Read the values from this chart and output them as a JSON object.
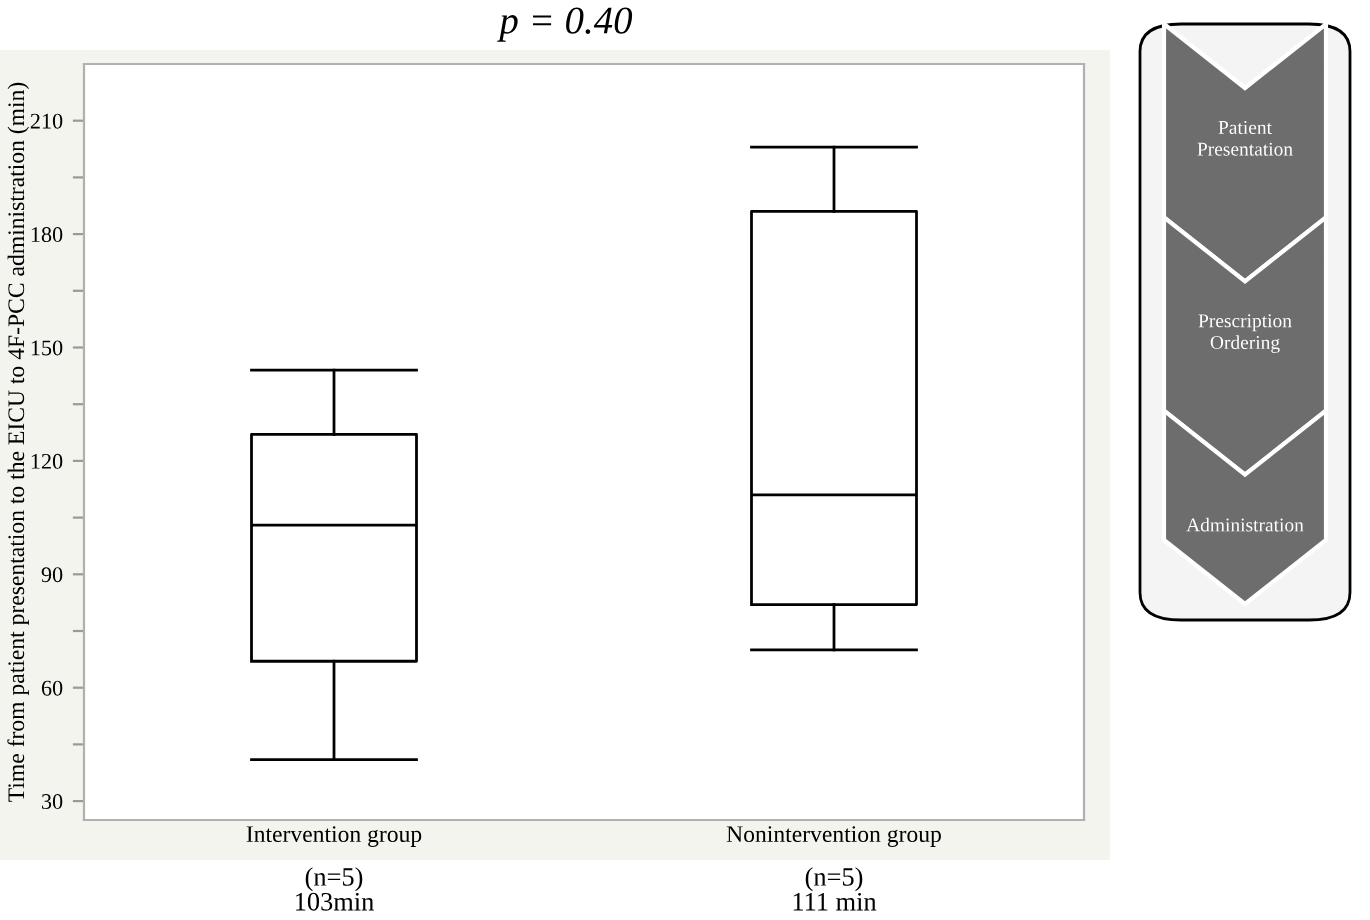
{
  "chart_data": {
    "type": "box",
    "title": "p = 0.40",
    "ylabel": "Time from patient presentation to the EICU to 4F-PCC administration (min)",
    "categories": [
      "Intervention group",
      "Nonintervention group"
    ],
    "boxes": [
      {
        "low": 41,
        "q1": 67,
        "median": 103,
        "q3": 127,
        "high": 144
      },
      {
        "low": 70,
        "q1": 82,
        "median": 111,
        "q3": 186,
        "high": 203
      }
    ],
    "color": "#000000",
    "ylim": [
      25,
      225
    ],
    "yticks": [
      30,
      {
        "value": 45,
        "label": null
      },
      60,
      {
        "value": 75,
        "label": null
      },
      90,
      {
        "value": 105,
        "label": null
      },
      120,
      {
        "value": 135,
        "label": null
      },
      150,
      {
        "value": 165,
        "label": null
      },
      180,
      {
        "value": 195,
        "label": null
      },
      210
    ],
    "grid": false,
    "annotations": [
      "(n=5)\n103min",
      "(n=5)\n111 min",
      "Patient\nPresentation",
      "Prescription\nOrdering",
      "Administration"
    ]
  }
}
